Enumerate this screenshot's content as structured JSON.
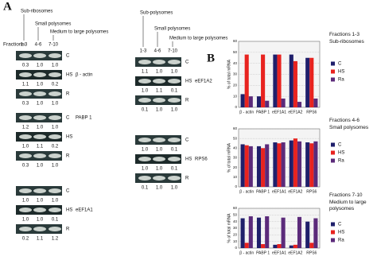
{
  "panel_a": {
    "label": "A",
    "fractions_label": "Fractions:",
    "columns": [
      {
        "headers": [
          "Sub-ribosomes",
          "Small polysomes",
          "Medium to large polysomes"
        ],
        "lanes": [
          "1-3",
          "4-6",
          "7-10"
        ],
        "blots": [
          {
            "gene": "β - actin",
            "rows": [
              {
                "label": "C",
                "values": [
                  "0.3",
                  "1.0",
                  "1.0"
                ]
              },
              {
                "label": "HS",
                "values": [
                  "1.1",
                  "1.0",
                  "0.2"
                ]
              },
              {
                "label": "R",
                "values": [
                  "0.3",
                  "1.0",
                  "1.0"
                ]
              }
            ]
          },
          {
            "gene": "PABP 1",
            "rows": [
              {
                "label": "C",
                "values": [
                  "1.2",
                  "1.0",
                  "1.0"
                ]
              },
              {
                "label": "HS",
                "values": [
                  "1.0",
                  "1.1",
                  "0.2"
                ]
              },
              {
                "label": "R",
                "values": [
                  "0.3",
                  "1.0",
                  "1.0"
                ]
              }
            ]
          },
          {
            "gene": "eEF1A1",
            "rows": [
              {
                "label": "C",
                "values": [
                  "1.0",
                  "1.0",
                  "1.0"
                ]
              },
              {
                "label": "HS",
                "values": [
                  "1.0",
                  "1.0",
                  "0.1"
                ]
              },
              {
                "label": "R",
                "values": [
                  "0.2",
                  "1.1",
                  "1.2"
                ]
              }
            ]
          }
        ]
      },
      {
        "headers": [
          "Sub-polysomes",
          "Small polysomes",
          "Medium to large polysomes"
        ],
        "lanes": [
          "1-3",
          "4-6",
          "7-10"
        ],
        "blots": [
          {
            "gene": "eEF1A2",
            "rows": [
              {
                "label": "C",
                "values": [
                  "1.1",
                  "1.0",
                  "1.0"
                ]
              },
              {
                "label": "HS",
                "values": [
                  "1.0",
                  "1.1",
                  "0.1"
                ]
              },
              {
                "label": "R",
                "values": [
                  "0.1",
                  "1.0",
                  "1.0"
                ]
              }
            ]
          },
          {
            "gene": "RPS6",
            "rows": [
              {
                "label": "C",
                "values": [
                  "1.0",
                  "1.0",
                  "0.1"
                ]
              },
              {
                "label": "HS",
                "values": [
                  "1.0",
                  "1.0",
                  "0.1"
                ]
              },
              {
                "label": "R",
                "values": [
                  "0.1",
                  "1.0",
                  "1.0"
                ]
              }
            ]
          }
        ]
      }
    ]
  },
  "panel_b": {
    "label": "B"
  },
  "chart_data": [
    {
      "type": "bar",
      "title": "Fractions 1-3",
      "subtitle": "Sub-ribosomes",
      "y_label": "% of total mRNA",
      "categories": [
        "β - actin",
        "PABP 1",
        "eEF1A1",
        "eEF1A2",
        "RPS6"
      ],
      "series": [
        {
          "name": "C",
          "color": "#1f1f6b",
          "values": [
            12,
            10,
            48,
            48,
            45
          ]
        },
        {
          "name": "HS",
          "color": "#e8231f",
          "values": [
            48,
            48,
            48,
            42,
            45
          ]
        },
        {
          "name": "Ra",
          "color": "#5b2a7a",
          "values": [
            10,
            6,
            8,
            5,
            8
          ]
        }
      ],
      "ylim": [
        0,
        60
      ],
      "yticks": [
        0,
        10,
        20,
        30,
        40,
        50,
        60
      ],
      "grid": true,
      "legend": "right"
    },
    {
      "type": "bar",
      "title": "Fractions 4-6",
      "subtitle": "Small polysomes",
      "y_label": "% of total mRNA",
      "categories": [
        "β - actin",
        "PABP 1",
        "eEF1A1",
        "eEF1A2",
        "RPS6"
      ],
      "series": [
        {
          "name": "C",
          "color": "#1f1f6b",
          "values": [
            44,
            42,
            46,
            48,
            46
          ]
        },
        {
          "name": "HS",
          "color": "#e8231f",
          "values": [
            43,
            40,
            45,
            50,
            45
          ]
        },
        {
          "name": "Ra",
          "color": "#5b2a7a",
          "values": [
            42,
            44,
            46,
            47,
            47
          ]
        }
      ],
      "ylim": [
        0,
        60
      ],
      "yticks": [
        0,
        10,
        20,
        30,
        40,
        50,
        60
      ],
      "grid": true,
      "legend": "right"
    },
    {
      "type": "bar",
      "title": "Fractions 7-10",
      "subtitle": "Medium to large polysomes",
      "y_label": "% of total mRNA",
      "categories": [
        "β - actin",
        "PABP 1",
        "eEF1A1",
        "eEF1A2",
        "RPS6"
      ],
      "series": [
        {
          "name": "C",
          "color": "#1f1f6b",
          "values": [
            45,
            46,
            5,
            4,
            40
          ]
        },
        {
          "name": "HS",
          "color": "#e8231f",
          "values": [
            8,
            6,
            6,
            5,
            8
          ]
        },
        {
          "name": "Ra",
          "color": "#5b2a7a",
          "values": [
            48,
            48,
            46,
            47,
            45
          ]
        }
      ],
      "ylim": [
        0,
        60
      ],
      "yticks": [
        0,
        10,
        20,
        30,
        40,
        50,
        60
      ],
      "grid": true,
      "legend": "right"
    }
  ]
}
